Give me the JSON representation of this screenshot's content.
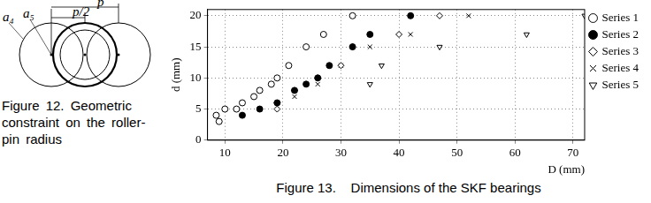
{
  "figure12": {
    "labels": [
      "a₄",
      "a₅",
      "p/2",
      "p"
    ],
    "caption": "Figure 12. Geometric constraint on the roller-pin radius"
  },
  "chart_data": {
    "type": "scatter",
    "caption": "Figure 13.    Dimensions of the SKF bearings",
    "x_label": "D (mm)",
    "y_label": "d (mm)",
    "xlim": [
      7,
      72
    ],
    "ylim": [
      0,
      21
    ],
    "xticks": [
      10,
      20,
      30,
      40,
      50,
      60,
      70
    ],
    "yticks": [
      0,
      5,
      10,
      15,
      20
    ],
    "grid": true,
    "legend": "right",
    "series": [
      {
        "name": "Series 1",
        "color": "#000000",
        "marker": "circle-open",
        "x": [
          8.5,
          9,
          10,
          12,
          13,
          15,
          16,
          18,
          19,
          21,
          24,
          27,
          32
        ],
        "values": [
          4,
          3,
          5,
          5,
          6,
          7,
          8,
          9,
          10,
          12,
          15,
          17,
          20
        ]
      },
      {
        "name": "Series 2",
        "color": "#000000",
        "marker": "circle-filled",
        "x": [
          13,
          16,
          19,
          22,
          24,
          26,
          28,
          32,
          35,
          42
        ],
        "values": [
          4,
          5,
          6,
          8,
          9,
          10,
          12,
          15,
          17,
          20
        ]
      },
      {
        "name": "Series 3",
        "color": "#000000",
        "marker": "diamond-open",
        "x": [
          19,
          19,
          22,
          26,
          30,
          32,
          40,
          47
        ],
        "values": [
          5,
          6,
          8,
          10,
          12,
          15,
          17,
          20
        ]
      },
      {
        "name": "Series 4",
        "color": "#000000",
        "marker": "cross",
        "x": [
          19,
          22,
          26,
          30,
          32,
          35,
          42,
          52
        ],
        "values": [
          6,
          7,
          9,
          12,
          15,
          15,
          17,
          20
        ]
      },
      {
        "name": "Series 5",
        "color": "#000000",
        "marker": "triangle-down-open",
        "x": [
          35,
          37,
          47,
          62,
          72
        ],
        "values": [
          9,
          12,
          15,
          17,
          20
        ]
      }
    ]
  }
}
